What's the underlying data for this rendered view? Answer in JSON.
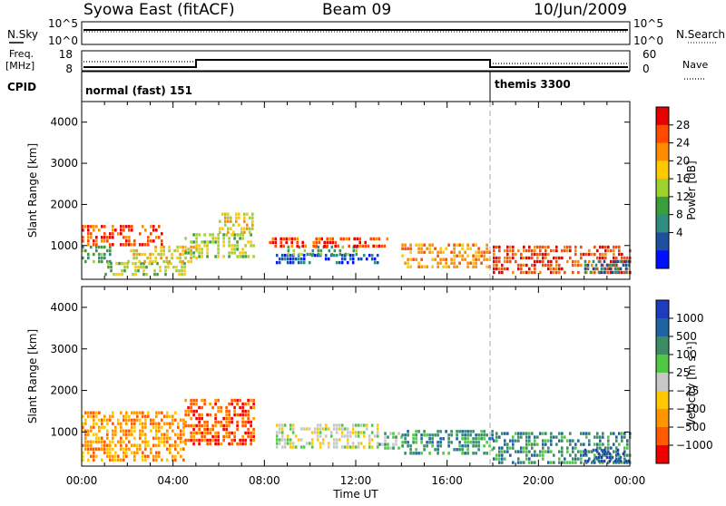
{
  "header": {
    "station": "Syowa East (fitACF)",
    "beam": "Beam 09",
    "date": "10/Jun/2009"
  },
  "summary": {
    "nsky_label": "N.Sky",
    "nsky_ticks": [
      "10^5",
      "10^0"
    ],
    "nsearch_label": "N.Search",
    "nsearch_ticks": [
      "10^5",
      "10^0"
    ],
    "freq_label_line1": "Freq.",
    "freq_label_line2": "[MHz]",
    "freq_ticks": [
      "18",
      "8"
    ],
    "nave_label": "Nave",
    "nave_ticks": [
      "60",
      "0"
    ],
    "cpid_label": "CPID",
    "cpid_segments": [
      {
        "label": "normal (fast) 151",
        "start_hour": 0
      },
      {
        "label": "themis 3300",
        "start_hour": 18
      }
    ]
  },
  "time_axis": {
    "label": "Time UT",
    "ticks": [
      "00:00",
      "04:00",
      "08:00",
      "12:00",
      "16:00",
      "20:00",
      "00:00"
    ]
  },
  "chart_data": [
    {
      "type": "heatmap",
      "name": "power-panel",
      "ylabel": "Slant Range [km]",
      "yticks": [
        "1000",
        "2000",
        "3000",
        "4000"
      ],
      "xlim": [
        0,
        24
      ],
      "ylim": [
        180,
        4500
      ],
      "colorbar_label": "Power [dB]",
      "colorbar_ticks": [
        "28",
        "24",
        "20",
        "16",
        "12",
        "8",
        "4"
      ],
      "colorbar_colors": [
        "#e60000",
        "#ff4a00",
        "#ff8c00",
        "#ffc800",
        "#a0d22d",
        "#3a9e3a",
        "#2e8c80",
        "#1e4fa0",
        "#0010ff"
      ],
      "echo_regions": [
        {
          "t0": 0.0,
          "t1": 1.3,
          "r0": 600,
          "r1": 1000,
          "level": 5
        },
        {
          "t0": 0.0,
          "t1": 3.5,
          "r0": 1000,
          "r1": 1500,
          "level": 1
        },
        {
          "t0": 1.0,
          "t1": 4.5,
          "r0": 300,
          "r1": 600,
          "level": 4
        },
        {
          "t0": 2.0,
          "t1": 5.0,
          "r0": 600,
          "r1": 1000,
          "level": 3
        },
        {
          "t0": 4.5,
          "t1": 7.5,
          "r0": 700,
          "r1": 1300,
          "level": 4
        },
        {
          "t0": 6.0,
          "t1": 7.5,
          "r0": 1300,
          "r1": 1800,
          "level": 3
        },
        {
          "t0": 8.5,
          "t1": 13.0,
          "r0": 600,
          "r1": 800,
          "level": 7
        },
        {
          "t0": 9.0,
          "t1": 12.0,
          "r0": 800,
          "r1": 1000,
          "level": 5
        },
        {
          "t0": 8.2,
          "t1": 13.5,
          "r0": 1000,
          "r1": 1200,
          "level": 1
        },
        {
          "t0": 14.0,
          "t1": 18.0,
          "r0": 450,
          "r1": 1050,
          "level": 2
        },
        {
          "t0": 18.0,
          "t1": 24.0,
          "r0": 300,
          "r1": 1000,
          "level": 1
        },
        {
          "t0": 22.0,
          "t1": 24.0,
          "r0": 300,
          "r1": 650,
          "level": 6
        }
      ]
    },
    {
      "type": "heatmap",
      "name": "velocity-panel",
      "ylabel": "Slant Range [km]",
      "yticks": [
        "1000",
        "2000",
        "3000",
        "4000"
      ],
      "xlim": [
        0,
        24
      ],
      "ylim": [
        180,
        4500
      ],
      "colorbar_label": "Velocity [m s⁻¹]",
      "colorbar_ticks": [
        "1000",
        "500",
        "100",
        "25",
        "−25",
        "−100",
        "−500",
        "−1000"
      ],
      "colorbar_colors": [
        "#1e3cbe",
        "#1e64a0",
        "#3c8c64",
        "#50c846",
        "#c8c8c8",
        "#ffc800",
        "#ff9600",
        "#ff5a00",
        "#ee0000"
      ],
      "echo_regions": [
        {
          "t0": 0.0,
          "t1": 4.5,
          "r0": 300,
          "r1": 1500,
          "level": 6
        },
        {
          "t0": 4.5,
          "t1": 7.5,
          "r0": 700,
          "r1": 1800,
          "level": 7
        },
        {
          "t0": 8.5,
          "t1": 13.0,
          "r0": 600,
          "r1": 1200,
          "level": 4
        },
        {
          "t0": 13.0,
          "t1": 14.0,
          "r0": 600,
          "r1": 1000,
          "level": 3
        },
        {
          "t0": 14.0,
          "t1": 18.0,
          "r0": 450,
          "r1": 1050,
          "level": 2
        },
        {
          "t0": 18.0,
          "t1": 24.0,
          "r0": 300,
          "r1": 1000,
          "level": 2
        },
        {
          "t0": 22.0,
          "t1": 24.0,
          "r0": 300,
          "r1": 600,
          "level": 0
        }
      ]
    }
  ]
}
